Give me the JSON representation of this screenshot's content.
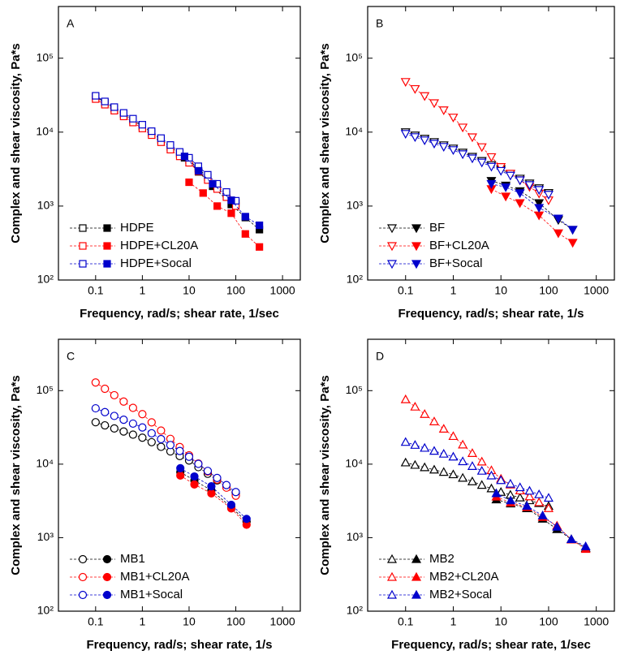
{
  "chart_data": [
    {
      "type": "line",
      "panel_label": "A",
      "xlabel": "Frequency, rad/s; shear rate, 1/sec",
      "ylabel": "Complex and shear viscosity, Pa*s",
      "xlog": true,
      "ylog": true,
      "xlim": [
        0.016,
        2400
      ],
      "ylim": [
        100,
        500000
      ],
      "xticks": [
        0.1,
        1,
        10,
        100,
        1000
      ],
      "yticks": [
        {
          "value": 100,
          "label": "10²"
        },
        {
          "value": 1000,
          "label": "10³"
        },
        {
          "value": 10000,
          "label": "10⁴"
        },
        {
          "value": 100000,
          "label": "10⁵"
        }
      ],
      "marker": "square",
      "legend": "lower left",
      "series": [
        {
          "name": "HDPE",
          "color": "#000000",
          "complex": {
            "x": [
              0.1,
              0.158,
              0.251,
              0.398,
              0.631,
              1,
              1.58,
              2.51,
              3.98,
              6.31,
              10,
              15.8,
              25.1,
              39.8,
              63.1,
              100
            ],
            "values": [
              30200,
              25100,
              20900,
              17400,
              14500,
              12000,
              9800,
              7900,
              6300,
              5100,
              4200,
              3200,
              2450,
              1860,
              1440,
              1100
            ]
          },
          "shear": {
            "x": [
              8,
              16,
              32,
              80,
              160,
              320
            ],
            "values": [
              4500,
              2900,
              1850,
              1050,
              700,
              480
            ]
          }
        },
        {
          "name": "HDPE+CL20A",
          "color": "#ff0000",
          "complex": {
            "x": [
              0.1,
              0.158,
              0.251,
              0.398,
              0.631,
              1,
              1.58,
              2.51,
              3.98,
              6.31,
              10,
              15.8,
              25.1,
              39.8,
              63.1,
              100
            ],
            "values": [
              28000,
              23500,
              19500,
              16300,
              13500,
              11200,
              9100,
              7300,
              5800,
              4700,
              3850,
              2950,
              2250,
              1700,
              1320,
              1000
            ]
          },
          "shear": {
            "x": [
              10,
              20,
              40,
              80,
              160,
              320
            ],
            "values": [
              2100,
              1500,
              1000,
              800,
              420,
              280
            ]
          }
        },
        {
          "name": "HDPE+Socal",
          "color": "#0000cc",
          "complex": {
            "x": [
              0.1,
              0.158,
              0.251,
              0.398,
              0.631,
              1,
              1.58,
              2.51,
              3.98,
              6.31,
              10,
              15.8,
              25.1,
              39.8,
              63.1,
              100
            ],
            "values": [
              31000,
              26000,
              21800,
              18200,
              15200,
              12600,
              10300,
              8300,
              6700,
              5400,
              4500,
              3450,
              2650,
              2000,
              1550,
              1180
            ]
          },
          "shear": {
            "x": [
              8,
              16,
              32,
              80,
              160,
              320
            ],
            "values": [
              4700,
              3000,
              2000,
              1200,
              720,
              550
            ]
          }
        }
      ]
    },
    {
      "type": "line",
      "panel_label": "B",
      "xlabel": "Frequency, rad/s; shear rate, 1/s",
      "ylabel": "Complex and shear viscosity, Pa*s",
      "xlog": true,
      "ylog": true,
      "xlim": [
        0.016,
        2400
      ],
      "ylim": [
        100,
        500000
      ],
      "xticks": [
        0.1,
        1,
        10,
        100,
        1000
      ],
      "yticks": [
        {
          "value": 100,
          "label": "10²"
        },
        {
          "value": 1000,
          "label": "10³"
        },
        {
          "value": 10000,
          "label": "10⁴"
        },
        {
          "value": 100000,
          "label": "10⁵"
        }
      ],
      "marker": "down-triangle",
      "legend": "lower left",
      "series": [
        {
          "name": "BF",
          "color": "#000000",
          "complex": {
            "x": [
              0.1,
              0.158,
              0.251,
              0.398,
              0.631,
              1,
              1.58,
              2.51,
              3.98,
              6.31,
              10,
              15.8,
              25.1,
              39.8,
              63.1,
              100
            ],
            "values": [
              10000,
              9040,
              8170,
              7380,
              6670,
              6030,
              5300,
              4660,
              4090,
              3600,
              3160,
              2730,
              2360,
              2030,
              1750,
              1510
            ]
          },
          "shear": {
            "x": [
              6.3,
              12.6,
              25,
              63,
              160,
              320
            ],
            "values": [
              2200,
              1900,
              1600,
              1100,
              650,
              480
            ]
          }
        },
        {
          "name": "BF+CL20A",
          "color": "#ff0000",
          "complex": {
            "x": [
              0.1,
              0.158,
              0.251,
              0.398,
              0.631,
              1,
              1.58,
              2.51,
              3.98,
              6.31,
              10,
              15.8,
              25.1,
              39.8,
              63.1,
              100
            ],
            "values": [
              47900,
              38400,
              30800,
              24700,
              19800,
              15800,
              11600,
              8550,
              6280,
              4610,
              3390,
              2750,
              2240,
              1820,
              1480,
              1200
            ]
          },
          "shear": {
            "x": [
              6.3,
              12.6,
              25,
              63,
              160,
              320
            ],
            "values": [
              1700,
              1350,
              1100,
              750,
              430,
              320
            ]
          }
        },
        {
          "name": "BF+Socal",
          "color": "#0000cc",
          "complex": {
            "x": [
              0.1,
              0.158,
              0.251,
              0.398,
              0.631,
              1,
              1.58,
              2.51,
              3.98,
              6.31,
              10,
              15.8,
              25.1,
              39.8,
              63.1,
              100
            ],
            "values": [
              9500,
              8590,
              7760,
              7010,
              6340,
              5730,
              5040,
              4430,
              3890,
              3420,
              3000,
              2590,
              2240,
              1930,
              1660,
              1430
            ]
          },
          "shear": {
            "x": [
              6.3,
              12.6,
              25,
              63,
              160,
              320
            ],
            "values": [
              2000,
              1800,
              1500,
              950,
              680,
              480
            ]
          }
        }
      ]
    },
    {
      "type": "line",
      "panel_label": "C",
      "xlabel": "Frequency, rad/s; shear rate, 1/s",
      "ylabel": "Complex and shear viscosity, Pa*s",
      "xlog": true,
      "ylog": true,
      "xlim": [
        0.016,
        2400
      ],
      "ylim": [
        100,
        500000
      ],
      "xticks": [
        0.1,
        1,
        10,
        100,
        1000
      ],
      "yticks": [
        {
          "value": 100,
          "label": "10²"
        },
        {
          "value": 1000,
          "label": "10³"
        },
        {
          "value": 10000,
          "label": "10⁴"
        },
        {
          "value": 100000,
          "label": "10⁵"
        }
      ],
      "marker": "circle",
      "legend": "lower left",
      "series": [
        {
          "name": "MB1",
          "color": "#000000",
          "complex": {
            "x": [
              0.1,
              0.158,
              0.251,
              0.398,
              0.631,
              1,
              1.58,
              2.51,
              3.98,
              6.31,
              10,
              15.8,
              25.1,
              39.8,
              63.1,
              100
            ],
            "values": [
              37200,
              33700,
              30600,
              27800,
              25200,
              22900,
              19900,
              17200,
              14900,
              12900,
              11200,
              9100,
              7400,
              6000,
              4900,
              4000
            ]
          },
          "shear": {
            "x": [
              6.5,
              13,
              30,
              80,
              170
            ],
            "values": [
              7800,
              6000,
              4400,
              2600,
              1650
            ]
          }
        },
        {
          "name": "MB1+CL20A",
          "color": "#ff0000",
          "complex": {
            "x": [
              0.1,
              0.158,
              0.251,
              0.398,
              0.631,
              1,
              1.58,
              2.51,
              3.98,
              6.31,
              10,
              15.8,
              25.1,
              39.8,
              63.1,
              100
            ],
            "values": [
              129000,
              106000,
              86700,
              71100,
              58300,
              47900,
              37000,
              28600,
              22100,
              17100,
              13200,
              10200,
              7940,
              6170,
              4790,
              3720
            ]
          },
          "shear": {
            "x": [
              6.5,
              13,
              30,
              80,
              170
            ],
            "values": [
              7000,
              5300,
              4000,
              2500,
              1500
            ]
          }
        },
        {
          "name": "MB1+Socal",
          "color": "#0000cc",
          "complex": {
            "x": [
              0.1,
              0.158,
              0.251,
              0.398,
              0.631,
              1,
              1.58,
              2.51,
              3.98,
              6.31,
              10,
              15.8,
              25.1,
              39.8,
              63.1,
              100
            ],
            "values": [
              57500,
              51000,
              45300,
              40200,
              35600,
              31600,
              26300,
              21900,
              18200,
              15100,
              12600,
              10100,
              8090,
              6490,
              5200,
              4170
            ]
          },
          "shear": {
            "x": [
              6.5,
              13,
              30,
              80,
              170
            ],
            "values": [
              8800,
              6800,
              5000,
              2800,
              1800
            ]
          }
        }
      ]
    },
    {
      "type": "line",
      "panel_label": "D",
      "xlabel": "Frequency, rad/s; shear rate, 1/sec",
      "ylabel": "Complex and shear viscosity, Pa*s",
      "xlog": true,
      "ylog": true,
      "xlim": [
        0.016,
        2400
      ],
      "ylim": [
        100,
        500000
      ],
      "xticks": [
        0.1,
        1,
        10,
        100,
        1000
      ],
      "yticks": [
        {
          "value": 100,
          "label": "10²"
        },
        {
          "value": 1000,
          "label": "10³"
        },
        {
          "value": 10000,
          "label": "10⁴"
        },
        {
          "value": 100000,
          "label": "10⁵"
        }
      ],
      "marker": "up-triangle",
      "legend": "lower left",
      "series": [
        {
          "name": "MB2",
          "color": "#000000",
          "complex": {
            "x": [
              0.1,
              0.158,
              0.251,
              0.398,
              0.631,
              1,
              1.58,
              2.51,
              3.98,
              6.31,
              10,
              15.8,
              25.1,
              39.8,
              63.1,
              100
            ],
            "values": [
              10500,
              9730,
              9040,
              8390,
              7800,
              7240,
              6490,
              5810,
              5200,
              4660,
              4170,
              3820,
              3500,
              3210,
              2940,
              2690
            ]
          },
          "shear": {
            "x": [
              8,
              16,
              35,
              75,
              150,
              300,
              600
            ],
            "values": [
              3300,
              2900,
              2500,
              1800,
              1300,
              950,
              720
            ]
          }
        },
        {
          "name": "MB2+CL20A",
          "color": "#ff0000",
          "complex": {
            "x": [
              0.1,
              0.158,
              0.251,
              0.398,
              0.631,
              1,
              1.58,
              2.51,
              3.98,
              6.31,
              10,
              15.8,
              25.1,
              39.8,
              63.1,
              100
            ],
            "values": [
              75900,
              60300,
              47900,
              38000,
              30200,
              24000,
              18400,
              14100,
              10800,
              8240,
              6310,
              5250,
              4370,
              3630,
              3020,
              2510
            ]
          },
          "shear": {
            "x": [
              8,
              16,
              35,
              75,
              150,
              300,
              600
            ],
            "values": [
              3600,
              3000,
              2600,
              1900,
              1450,
              940,
              700
            ]
          }
        },
        {
          "name": "MB2+Socal",
          "color": "#0000cc",
          "complex": {
            "x": [
              0.1,
              0.158,
              0.251,
              0.398,
              0.631,
              1,
              1.58,
              2.51,
              3.98,
              6.31,
              10,
              15.8,
              25.1,
              39.8,
              63.1,
              100
            ],
            "values": [
              19950,
              18200,
              16600,
              15100,
              13800,
              12600,
              10900,
              9380,
              8090,
              6980,
              6030,
              5400,
              4830,
              4330,
              3870,
              3470
            ]
          },
          "shear": {
            "x": [
              8,
              16,
              35,
              75,
              150,
              300,
              600
            ],
            "values": [
              4000,
              3200,
              2700,
              2000,
              1400,
              950,
              760
            ]
          }
        }
      ]
    }
  ]
}
